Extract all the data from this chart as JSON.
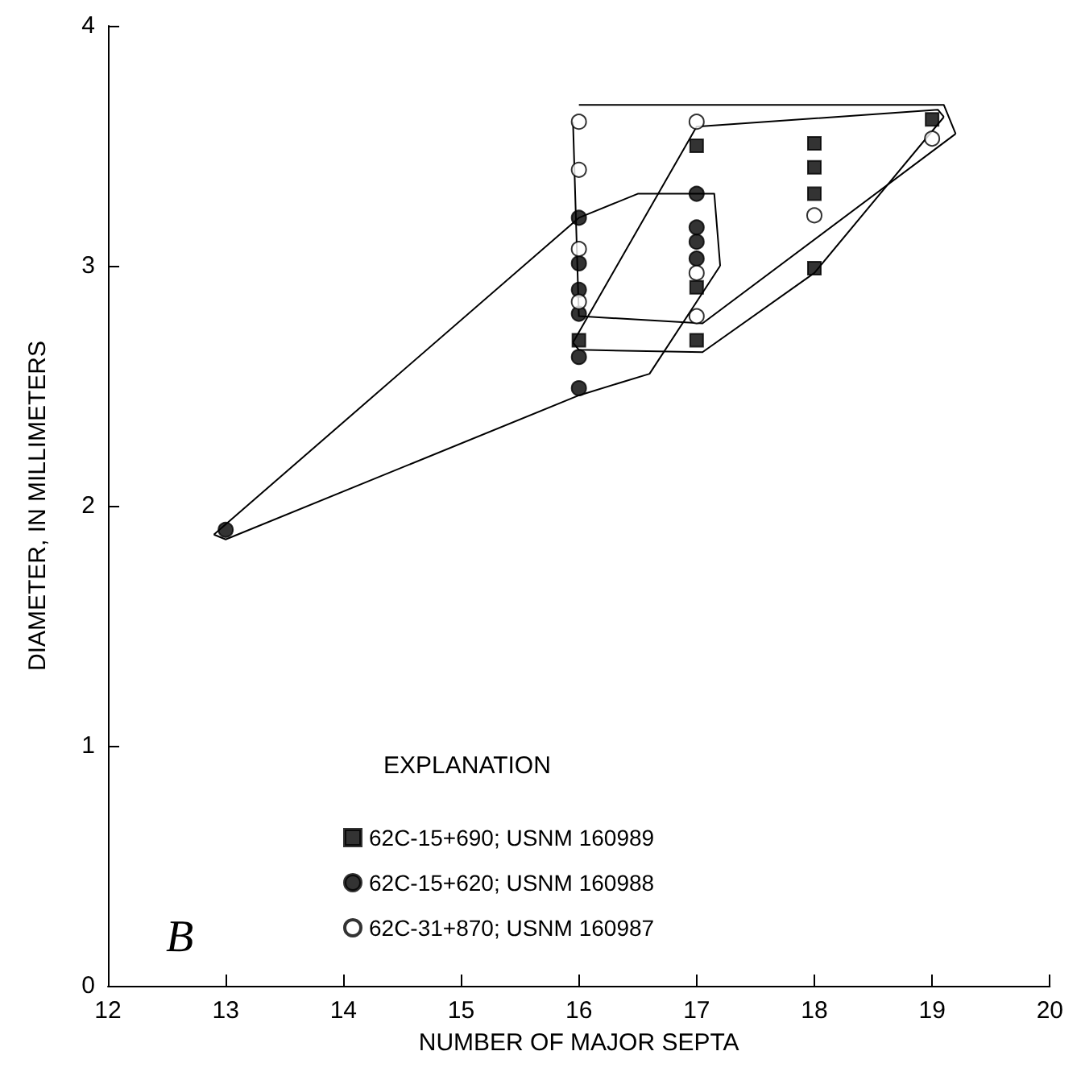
{
  "chart_data": {
    "type": "scatter",
    "xlabel": "NUMBER OF MAJOR SEPTA",
    "ylabel": "DIAMETER, IN MILLIMETERS",
    "legend_title": "EXPLANATION",
    "annotations": [
      "B"
    ],
    "xlim": [
      12,
      20
    ],
    "xticks": [
      12,
      13,
      14,
      15,
      16,
      17,
      18,
      19,
      20
    ],
    "ylim": [
      0,
      4
    ],
    "yticks": [
      0,
      1,
      2,
      3,
      4
    ],
    "grid": false,
    "legend": "bottom",
    "series": [
      {
        "name": "62C-15+690; USNM 160989",
        "color": "#000000",
        "marker": "square",
        "x": [
          16,
          17,
          17,
          17,
          18,
          18,
          18,
          18,
          19
        ],
        "values": [
          2.69,
          3.5,
          2.91,
          2.69,
          3.51,
          3.41,
          3.3,
          2.99,
          3.61
        ]
      },
      {
        "name": "62C-15+620; USNM 160988",
        "color": "#000000",
        "marker": "circle",
        "x": [
          13,
          16,
          16,
          16,
          16,
          16,
          16,
          17,
          17,
          17,
          17
        ],
        "values": [
          1.9,
          3.2,
          3.01,
          2.9,
          2.8,
          2.62,
          2.49,
          3.3,
          3.16,
          3.1,
          3.03
        ]
      },
      {
        "name": "62C-31+870; USNM 160987",
        "color": "#ffffff",
        "marker": "circle",
        "x": [
          16,
          16,
          16,
          16,
          17,
          17,
          17,
          18,
          19
        ],
        "values": [
          3.6,
          3.4,
          3.07,
          2.85,
          3.6,
          2.97,
          2.79,
          3.21,
          3.53
        ]
      },
      {
        "type": "line",
        "color": "#000000",
        "marker": "none",
        "x": [
          12.9,
          16,
          16.5,
          17.15,
          17.2
        ],
        "values": [
          1.88,
          3.2,
          3.3,
          3.3,
          3.0
        ]
      },
      {
        "type": "line",
        "color": "#000000",
        "marker": "none",
        "x": [
          12.9,
          13,
          16,
          16.6,
          17.2
        ],
        "values": [
          1.88,
          1.86,
          2.46,
          2.55,
          3.0
        ]
      },
      {
        "type": "line",
        "color": "#000000",
        "marker": "none",
        "x": [
          16,
          19.1,
          19.2
        ],
        "values": [
          3.67,
          3.67,
          3.55
        ]
      },
      {
        "type": "line",
        "color": "#000000",
        "marker": "none",
        "x": [
          15.95,
          16,
          17.05,
          19.2
        ],
        "values": [
          3.6,
          2.79,
          2.76,
          3.55
        ]
      },
      {
        "type": "line",
        "color": "#000000",
        "marker": "none",
        "x": [
          15.95,
          17,
          19.05,
          19.1
        ],
        "values": [
          2.68,
          3.58,
          3.65,
          3.62
        ]
      },
      {
        "type": "line",
        "color": "#000000",
        "marker": "none",
        "x": [
          15.95,
          16,
          17.05,
          18,
          19.1
        ],
        "values": [
          2.68,
          2.65,
          2.64,
          2.97,
          3.62
        ]
      }
    ]
  }
}
